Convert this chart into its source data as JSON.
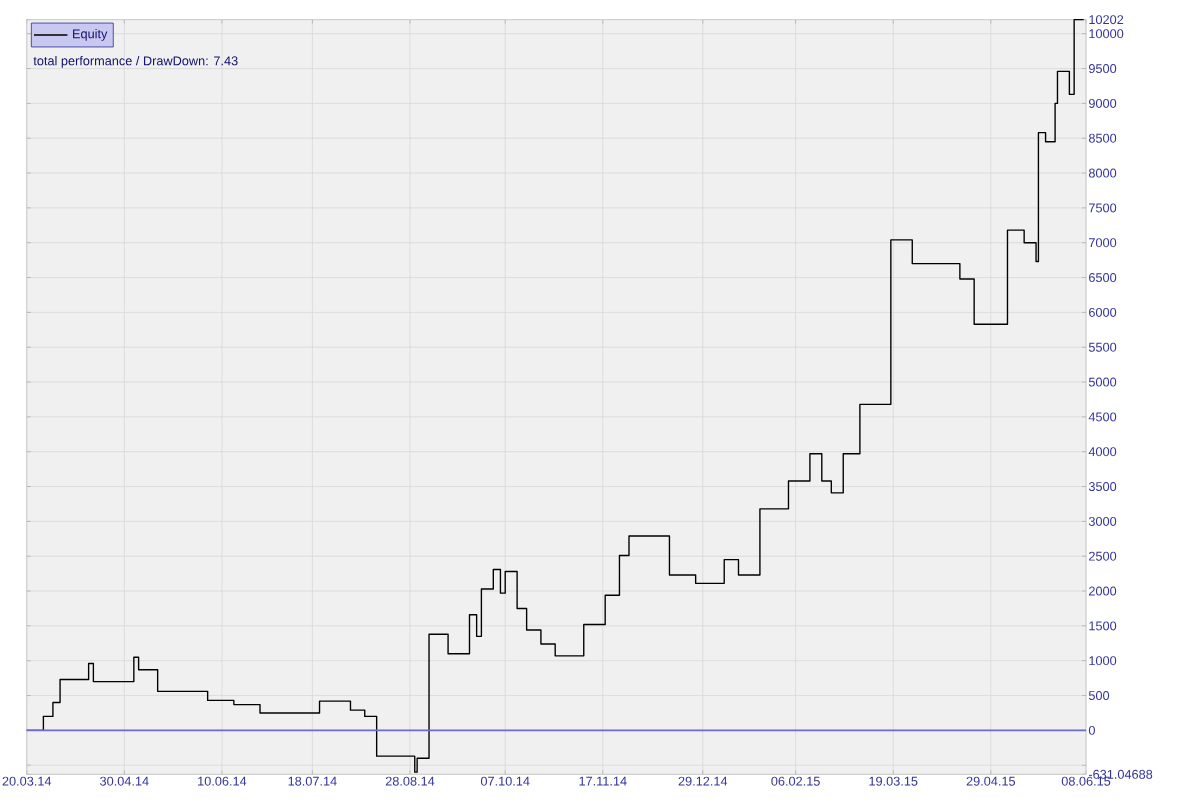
{
  "chart_data": {
    "type": "step",
    "annotations": [
      "total performance / DrawDown: 7.43"
    ],
    "x": [
      "2014-03-20",
      "2014-03-25",
      "2014-03-27",
      "2014-03-31",
      "2014-04-03",
      "2014-04-15",
      "2014-04-17",
      "2014-05-04",
      "2014-05-06",
      "2014-05-14",
      "2014-06-04",
      "2014-06-15",
      "2014-06-26",
      "2014-07-21",
      "2014-08-03",
      "2014-08-09",
      "2014-08-14",
      "2014-08-30",
      "2014-08-31",
      "2014-09-05",
      "2014-09-13",
      "2014-09-22",
      "2014-09-25",
      "2014-09-27",
      "2014-10-02",
      "2014-10-05",
      "2014-10-07",
      "2014-10-12",
      "2014-10-16",
      "2014-10-22",
      "2014-10-28",
      "2014-11-09",
      "2014-11-18",
      "2014-11-24",
      "2014-11-28",
      "2014-12-15",
      "2014-12-26",
      "2015-01-07",
      "2015-01-13",
      "2015-01-22",
      "2015-02-03",
      "2015-02-12",
      "2015-02-17",
      "2015-02-21",
      "2015-02-26",
      "2015-03-05",
      "2015-03-18",
      "2015-03-27",
      "2015-04-16",
      "2015-04-22",
      "2015-05-06",
      "2015-05-13",
      "2015-05-18",
      "2015-05-19",
      "2015-05-22",
      "2015-05-26",
      "2015-05-27",
      "2015-06-01",
      "2015-06-03",
      "2015-06-07"
    ],
    "series": [
      {
        "name": "Equity",
        "color": "#000000",
        "values": [
          0,
          0,
          200,
          400,
          730,
          960,
          700,
          1050,
          870,
          560,
          430,
          370,
          250,
          420,
          290,
          200,
          -370,
          -600,
          -400,
          1380,
          1100,
          1660,
          1350,
          2030,
          2310,
          1970,
          2280,
          1750,
          1440,
          1240,
          1070,
          1520,
          1940,
          2510,
          2790,
          2230,
          2110,
          2450,
          2230,
          3180,
          3580,
          3970,
          3580,
          3410,
          3970,
          4680,
          7040,
          6700,
          6480,
          5830,
          7180,
          7000,
          6730,
          8580,
          8450,
          9000,
          9460,
          9130,
          10202,
          10202
        ]
      }
    ],
    "xlim": [
      "2014-03-20",
      "2015-06-08"
    ],
    "xticks": [
      {
        "value": "2014-03-20",
        "label": "20.03.14"
      },
      {
        "value": "2014-04-30",
        "label": "30.04.14"
      },
      {
        "value": "2014-06-10",
        "label": "10.06.14"
      },
      {
        "value": "2014-07-18",
        "label": "18.07.14"
      },
      {
        "value": "2014-08-28",
        "label": "28.08.14"
      },
      {
        "value": "2014-10-07",
        "label": "07.10.14"
      },
      {
        "value": "2014-11-17",
        "label": "17.11.14"
      },
      {
        "value": "2014-12-29",
        "label": "29.12.14"
      },
      {
        "value": "2015-02-06",
        "label": "06.02.15"
      },
      {
        "value": "2015-03-19",
        "label": "19.03.15"
      },
      {
        "value": "2015-04-29",
        "label": "29.04.15"
      },
      {
        "value": "2015-06-08",
        "label": "08.06.15"
      }
    ],
    "ylim": [
      -631.04688,
      10202
    ],
    "yticks": [
      -631.04688,
      {
        "value": -500,
        "label": null
      },
      0,
      500,
      1000,
      1500,
      2000,
      2500,
      3000,
      3500,
      4000,
      4500,
      5000,
      5500,
      6000,
      6500,
      7000,
      7500,
      8000,
      8500,
      9000,
      9500,
      10000,
      10202
    ],
    "grid": true,
    "legend": "top left",
    "ref_lines": [
      {
        "axis": "y",
        "value": 0,
        "color": "#6b6bd0"
      }
    ]
  }
}
